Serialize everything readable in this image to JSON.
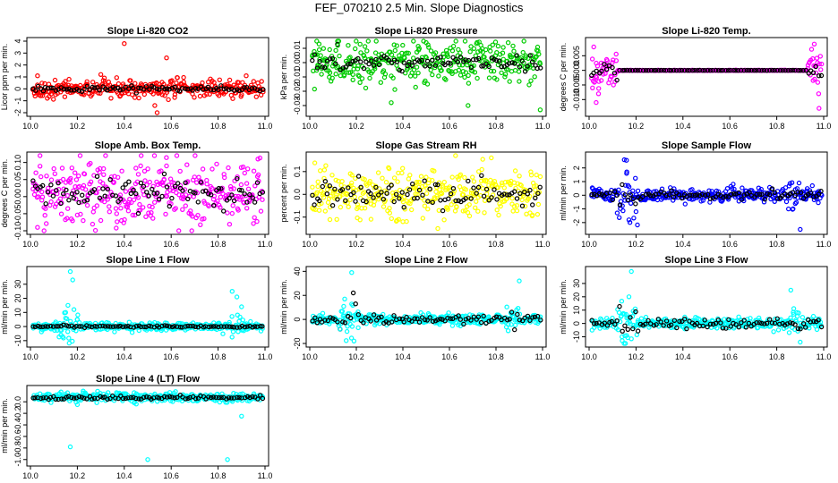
{
  "page_title": "FEF_070210  2.5 Min. Slope Diagnostics",
  "colors": {
    "black": "#000000",
    "red": "#ff0000",
    "green": "#00cc00",
    "magenta": "#ff00ff",
    "yellow": "#ffff00",
    "blue": "#0000ff",
    "cyan": "#00ffff"
  },
  "chart_data": [
    {
      "type": "scatter",
      "title": "Slope Li-820 CO2",
      "ylabel": "Licor ppm per min.",
      "xlabel": "",
      "xlim": [
        10.0,
        11.0
      ],
      "ylim": [
        -2.0,
        4.0
      ],
      "xticks": [
        10.0,
        10.2,
        10.4,
        10.6,
        10.8,
        11.0
      ],
      "xtick_labels": [
        "10.0",
        "10.2",
        "10.4",
        "10.6",
        "10.8",
        "11.0"
      ],
      "yticks": [
        -2,
        -1,
        0,
        1,
        2,
        3,
        4
      ],
      "ytick_labels": [
        "-2",
        "-1",
        "0",
        "1",
        "2",
        "3",
        "4"
      ],
      "color": "#ff0000",
      "series": [
        {
          "name": "slope",
          "kind": "noisy",
          "center": 0.0,
          "spread": 0.35
        },
        {
          "name": "mean",
          "kind": "black",
          "center": 0.0,
          "spread": 0.12
        }
      ],
      "outliers": [
        [
          10.03,
          1.1
        ],
        [
          10.02,
          -0.6
        ],
        [
          10.4,
          3.8
        ],
        [
          10.58,
          2.6
        ],
        [
          10.54,
          -2.0
        ],
        [
          10.53,
          -1.4
        ],
        [
          10.3,
          1.2
        ],
        [
          10.92,
          1.1
        ]
      ]
    },
    {
      "type": "scatter",
      "title": "Slope Li-820 Pressure",
      "ylabel": "kPa per min.",
      "xlabel": "",
      "xlim": [
        10.0,
        11.0
      ],
      "ylim": [
        -0.035,
        0.015
      ],
      "xticks": [
        10.0,
        10.2,
        10.4,
        10.6,
        10.8,
        11.0
      ],
      "xtick_labels": [
        "10.0",
        "10.2",
        "10.4",
        "10.6",
        "10.8",
        "11.0"
      ],
      "yticks": [
        -0.03,
        -0.02,
        -0.01,
        0.0,
        0.01
      ],
      "ytick_labels": [
        "-0.03",
        "-0.02",
        "-0.01",
        "0.00",
        "0.01"
      ],
      "color": "#00cc00",
      "series": [
        {
          "name": "slope",
          "kind": "noisy",
          "center": 0.0,
          "spread": 0.007
        },
        {
          "name": "mean",
          "kind": "black",
          "center": 0.0,
          "spread": 0.003
        }
      ],
      "outliers": [
        [
          10.03,
          0.016
        ],
        [
          10.04,
          0.013
        ],
        [
          10.5,
          0.014
        ],
        [
          10.35,
          -0.028
        ],
        [
          10.68,
          -0.03
        ],
        [
          10.99,
          -0.033
        ],
        [
          10.12,
          0.012
        ]
      ]
    },
    {
      "type": "scatter",
      "title": "Slope Li-820 Temp.",
      "ylabel": "degrees C per min.",
      "xlabel": "",
      "xlim": [
        10.0,
        11.0
      ],
      "ylim": [
        -0.0145,
        0.01
      ],
      "xticks": [
        10.0,
        10.2,
        10.4,
        10.6,
        10.8,
        11.0
      ],
      "xtick_labels": [
        "10.0",
        "10.2",
        "10.4",
        "10.6",
        "10.8",
        "11.0"
      ],
      "yticks": [
        -0.01,
        -0.005,
        0.0,
        0.005
      ],
      "ytick_labels": [
        "-0.010",
        "-0.005",
        "0.000",
        "0.005"
      ],
      "color": "#ff00ff",
      "series": [
        {
          "name": "slope",
          "kind": "edges",
          "center": 0.0,
          "spread": 0.004
        },
        {
          "name": "mean",
          "kind": "black-edges",
          "center": 0.0,
          "spread": 0.0015
        }
      ],
      "outliers": [
        [
          10.02,
          0.008
        ],
        [
          10.96,
          0.009
        ],
        [
          10.98,
          -0.013
        ],
        [
          10.04,
          -0.008
        ],
        [
          10.03,
          -0.011
        ]
      ]
    },
    {
      "type": "scatter",
      "title": "Slope Amb. Box Temp.",
      "ylabel": "degrees C per min.",
      "xlabel": "",
      "xlim": [
        10.0,
        11.0
      ],
      "ylim": [
        -0.1,
        0.12
      ],
      "xticks": [
        10.0,
        10.2,
        10.4,
        10.6,
        10.8,
        11.0
      ],
      "xtick_labels": [
        "10.0",
        "10.2",
        "10.4",
        "10.6",
        "10.8",
        "11.0"
      ],
      "yticks": [
        -0.1,
        -0.05,
        0.0,
        0.05,
        0.1
      ],
      "ytick_labels": [
        "-0.10",
        "-0.05",
        "0.00",
        "0.05",
        "0.10"
      ],
      "color": "#ff00ff",
      "series": [
        {
          "name": "slope",
          "kind": "noisy",
          "center": 0.01,
          "spread": 0.05
        },
        {
          "name": "mean",
          "kind": "black",
          "center": 0.01,
          "spread": 0.02
        }
      ],
      "outliers": [
        [
          10.03,
          -0.09
        ],
        [
          10.97,
          0.11
        ],
        [
          10.58,
          0.09
        ],
        [
          10.47,
          0.09
        ],
        [
          10.3,
          -0.07
        ]
      ]
    },
    {
      "type": "scatter",
      "title": "Slope Gas Stream RH",
      "ylabel": "percent per min.",
      "xlabel": "",
      "xlim": [
        10.0,
        11.0
      ],
      "ylim": [
        -0.16,
        0.17
      ],
      "xticks": [
        10.0,
        10.2,
        10.4,
        10.6,
        10.8,
        11.0
      ],
      "xtick_labels": [
        "10.0",
        "10.2",
        "10.4",
        "10.6",
        "10.8",
        "11.0"
      ],
      "yticks": [
        -0.1,
        0.0,
        0.1
      ],
      "ytick_labels": [
        "-0.1",
        "0.0",
        "0.1"
      ],
      "color": "#ffff00",
      "series": [
        {
          "name": "slope",
          "kind": "noisy",
          "center": 0.0,
          "spread": 0.05
        },
        {
          "name": "mean",
          "kind": "black",
          "center": 0.0,
          "spread": 0.03
        }
      ],
      "outliers": [
        [
          10.78,
          0.16
        ],
        [
          10.55,
          -0.15
        ],
        [
          10.4,
          -0.12
        ]
      ]
    },
    {
      "type": "scatter",
      "title": "Slope Sample Flow",
      "ylabel": "ml/min per min.",
      "xlabel": "",
      "xlim": [
        10.0,
        11.0
      ],
      "ylim": [
        -2.6,
        2.9
      ],
      "xticks": [
        10.0,
        10.2,
        10.4,
        10.6,
        10.8,
        11.0
      ],
      "xtick_labels": [
        "10.0",
        "10.2",
        "10.4",
        "10.6",
        "10.8",
        "11.0"
      ],
      "yticks": [
        -2,
        -1,
        0,
        1,
        2
      ],
      "ytick_labels": [
        "-2",
        "-1",
        "0",
        "1",
        "2"
      ],
      "color": "#0000ff",
      "series": [
        {
          "name": "slope",
          "kind": "spike",
          "center": 0.0,
          "spread": 0.25
        },
        {
          "name": "mean",
          "kind": "black",
          "center": 0.0,
          "spread": 0.15
        }
      ],
      "outliers": [
        [
          10.15,
          2.6
        ],
        [
          10.16,
          1.6
        ],
        [
          10.17,
          -1.8
        ],
        [
          10.2,
          -1.2
        ],
        [
          10.12,
          -1.3
        ],
        [
          10.9,
          -2.5
        ],
        [
          10.85,
          -1.0
        ]
      ]
    },
    {
      "type": "scatter",
      "title": "Slope Line 1 Flow",
      "ylabel": "ml/min per min.",
      "xlabel": "",
      "xlim": [
        10.0,
        11.0
      ],
      "ylim": [
        -12,
        40
      ],
      "xticks": [
        10.0,
        10.2,
        10.4,
        10.6,
        10.8,
        11.0
      ],
      "xtick_labels": [
        "10.0",
        "10.2",
        "10.4",
        "10.6",
        "10.8",
        "11.0"
      ],
      "yticks": [
        -10,
        0,
        10,
        20,
        30
      ],
      "ytick_labels": [
        "-10",
        "0",
        "10",
        "20",
        "30"
      ],
      "color": "#00ffff",
      "series": [
        {
          "name": "slope",
          "kind": "spike",
          "center": 0.0,
          "spread": 1.5
        },
        {
          "name": "mean",
          "kind": "black",
          "center": 0.0,
          "spread": 0.3
        }
      ],
      "outliers": [
        [
          10.17,
          39
        ],
        [
          10.18,
          33
        ],
        [
          10.16,
          15
        ],
        [
          10.15,
          10
        ],
        [
          10.86,
          25
        ],
        [
          10.88,
          21
        ],
        [
          10.9,
          14
        ],
        [
          10.13,
          -6
        ]
      ]
    },
    {
      "type": "scatter",
      "title": "Slope Line 2 Flow",
      "ylabel": "ml/min per min.",
      "xlabel": "",
      "xlim": [
        10.0,
        11.0
      ],
      "ylim": [
        -20,
        41
      ],
      "xticks": [
        10.0,
        10.2,
        10.4,
        10.6,
        10.8,
        11.0
      ],
      "xtick_labels": [
        "10.0",
        "10.2",
        "10.4",
        "10.6",
        "10.8",
        "11.0"
      ],
      "yticks": [
        -20,
        0,
        20,
        40
      ],
      "ytick_labels": [
        "-20",
        "0",
        "20",
        "40"
      ],
      "color": "#00ffff",
      "series": [
        {
          "name": "slope",
          "kind": "spike",
          "center": 0.0,
          "spread": 2.0
        },
        {
          "name": "mean",
          "kind": "black",
          "center": 0.0,
          "spread": 2.0
        }
      ],
      "outliers": [
        [
          10.18,
          39
        ],
        [
          10.19,
          -18
        ],
        [
          10.16,
          -10
        ],
        [
          10.9,
          32
        ],
        [
          10.15,
          17
        ],
        [
          10.13,
          -8
        ]
      ]
    },
    {
      "type": "scatter",
      "title": "Slope Line 3 Flow",
      "ylabel": "ml/min per min.",
      "xlabel": "",
      "xlim": [
        10.0,
        11.0
      ],
      "ylim": [
        -15,
        40
      ],
      "xticks": [
        10.0,
        10.2,
        10.4,
        10.6,
        10.8,
        11.0
      ],
      "xtick_labels": [
        "10.0",
        "10.2",
        "10.4",
        "10.6",
        "10.8",
        "11.0"
      ],
      "yticks": [
        -10,
        0,
        10,
        20,
        30
      ],
      "ytick_labels": [
        "-10",
        "0",
        "10",
        "20",
        "30"
      ],
      "color": "#00ffff",
      "series": [
        {
          "name": "slope",
          "kind": "spike",
          "center": 0.0,
          "spread": 2.0
        },
        {
          "name": "mean",
          "kind": "black",
          "center": 0.0,
          "spread": 1.5
        }
      ],
      "outliers": [
        [
          10.18,
          39
        ],
        [
          10.17,
          20
        ],
        [
          10.16,
          -9
        ],
        [
          10.14,
          -10
        ],
        [
          10.86,
          25
        ],
        [
          10.9,
          -14
        ],
        [
          10.15,
          7
        ]
      ]
    },
    {
      "type": "scatter",
      "title": "Slope Line 4 (LT) Flow",
      "ylabel": "ml/min per min.",
      "xlabel": "",
      "xlim": [
        10.0,
        11.0
      ],
      "ylim": [
        -1.05,
        0.22
      ],
      "xticks": [
        10.0,
        10.2,
        10.4,
        10.6,
        10.8,
        11.0
      ],
      "xtick_labels": [
        "10.0",
        "10.2",
        "10.4",
        "10.6",
        "10.8",
        "11.0"
      ],
      "yticks": [
        -1.0,
        -0.8,
        -0.6,
        -0.4,
        -0.2,
        0.0
      ],
      "ytick_labels": [
        "-1.0",
        "-0.8",
        "-0.6",
        "-0.4",
        "-0.2",
        "0.0"
      ],
      "color": "#00ffff",
      "series": [
        {
          "name": "slope",
          "kind": "noisy",
          "center": 0.08,
          "spread": 0.04
        },
        {
          "name": "mean",
          "kind": "black",
          "center": 0.07,
          "spread": 0.02
        }
      ],
      "outliers": [
        [
          10.17,
          -0.78
        ],
        [
          10.5,
          -1.0
        ],
        [
          10.84,
          -1.0
        ],
        [
          10.9,
          -0.25
        ],
        [
          10.2,
          -0.05
        ]
      ]
    }
  ]
}
